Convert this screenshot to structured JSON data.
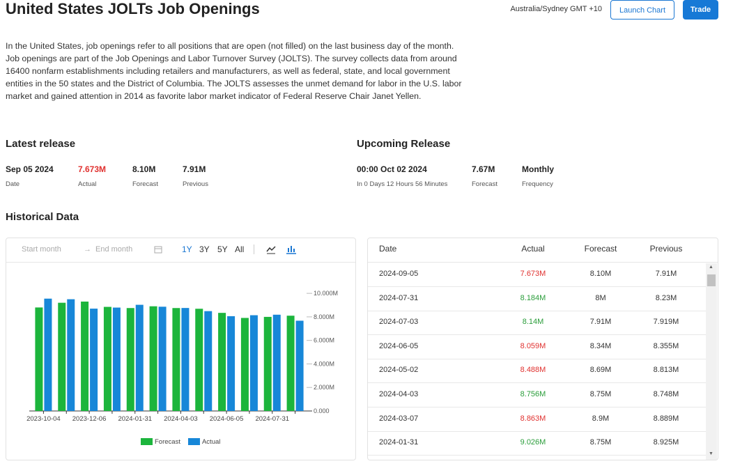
{
  "header": {
    "title": "United States JOLTs Job Openings",
    "timezone": "Australia/Sydney GMT +10",
    "buttons": [
      "Launch Chart",
      "Trade"
    ]
  },
  "description": "In the United States, job openings refer to all positions that are open (not filled) on the last business day of the month. Job openings are part of the Job Openings and Labor Turnover Survey (JOLTS). The survey collects data from around 16400 nonfarm establishments including retailers and manufacturers, as well as federal, state, and local government entities in the 50 states and the District of Columbia. The JOLTS assesses the unmet demand for labor in the U.S. labor market and gained attention in 2014 as favorite labor market indicator of Federal Reserve Chair Janet Yellen.",
  "latest_release": {
    "title": "Latest release",
    "items": [
      {
        "value": "Sep 05 2024",
        "label": "Date"
      },
      {
        "value": "7.673M",
        "label": "Actual",
        "color": "#e0312f"
      },
      {
        "value": "8.10M",
        "label": "Forecast"
      },
      {
        "value": "7.91M",
        "label": "Previous"
      }
    ]
  },
  "upcoming_release": {
    "title": "Upcoming Release",
    "items": [
      {
        "value": "00:00 Oct 02 2024",
        "label": "In 0 Days 12 Hours 56 Minutes"
      },
      {
        "value": "7.67M",
        "label": "Forecast"
      },
      {
        "value": "Monthly",
        "label": "Frequency"
      }
    ]
  },
  "historical_title": "Historical Data",
  "toolbar": {
    "start": "Start month",
    "end": "End month",
    "ranges": [
      "1Y",
      "3Y",
      "5Y",
      "All"
    ]
  },
  "chart_data": {
    "type": "bar",
    "categories": [
      "2023-10-04",
      null,
      "2023-12-06",
      null,
      "2024-01-31",
      null,
      "2024-04-03",
      null,
      "2024-06-05",
      null,
      "2024-07-31",
      null
    ],
    "series": [
      {
        "name": "Forecast",
        "color": "#1cb53c",
        "values": [
          8.8,
          9.2,
          9.3,
          8.85,
          8.75,
          8.9,
          8.75,
          8.69,
          8.34,
          7.91,
          8.0,
          8.1
        ]
      },
      {
        "name": "Actual",
        "color": "#1787d8",
        "values": [
          9.55,
          9.5,
          8.7,
          8.79,
          9.026,
          8.863,
          8.756,
          8.488,
          8.059,
          8.14,
          8.184,
          7.673
        ]
      }
    ],
    "ylim": [
      0,
      10.6
    ],
    "yticks": [
      {
        "value": 0,
        "label": "0.000"
      },
      {
        "value": 2,
        "label": "2.000M"
      },
      {
        "value": 4,
        "label": "4.000M"
      },
      {
        "value": 6,
        "label": "6.000M"
      },
      {
        "value": 8,
        "label": "8.000M"
      },
      {
        "value": 10,
        "label": "10.000M"
      }
    ],
    "legend": "bottom"
  },
  "table": {
    "columns": [
      "Date",
      "Actual",
      "Forecast",
      "Previous"
    ],
    "rows": [
      [
        "2024-09-05",
        "7.673M",
        "8.10M",
        "7.91M"
      ],
      [
        "2024-07-31",
        "8.184M",
        "8M",
        "8.23M"
      ],
      [
        "2024-07-03",
        "8.14M",
        "7.91M",
        "7.919M"
      ],
      [
        "2024-06-05",
        "8.059M",
        "8.34M",
        "8.355M"
      ],
      [
        "2024-05-02",
        "8.488M",
        "8.69M",
        "8.813M"
      ],
      [
        "2024-04-03",
        "8.756M",
        "8.75M",
        "8.748M"
      ],
      [
        "2024-03-07",
        "8.863M",
        "8.9M",
        "8.889M"
      ],
      [
        "2024-01-31",
        "9.026M",
        "8.75M",
        "8.925M"
      ]
    ],
    "actual_colors": [
      "#e0312f",
      "#2a9d3a",
      "#2a9d3a",
      "#e0312f",
      "#e0312f",
      "#2a9d3a",
      "#e0312f",
      "#2a9d3a"
    ]
  }
}
